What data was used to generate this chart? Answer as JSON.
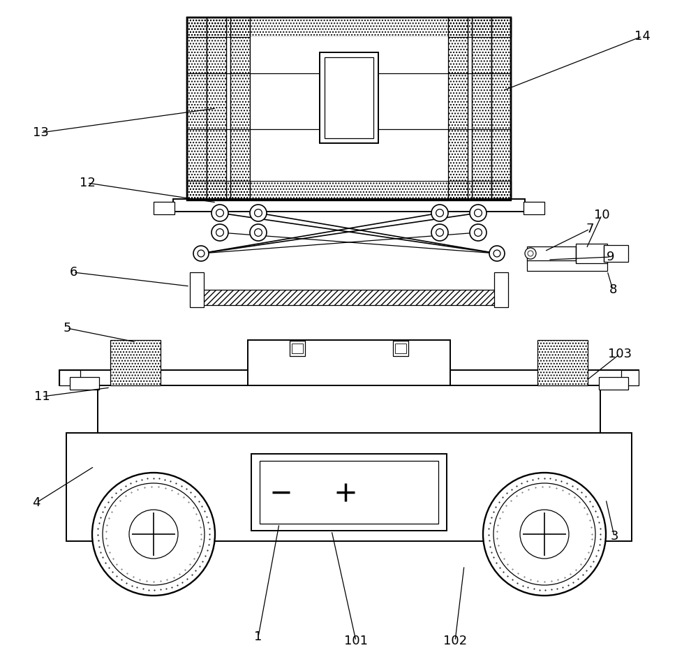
{
  "bg_color": "#ffffff",
  "fig_width": 10.0,
  "fig_height": 9.61,
  "font_size": 13,
  "lw_main": 1.4,
  "lw_thin": 0.9
}
